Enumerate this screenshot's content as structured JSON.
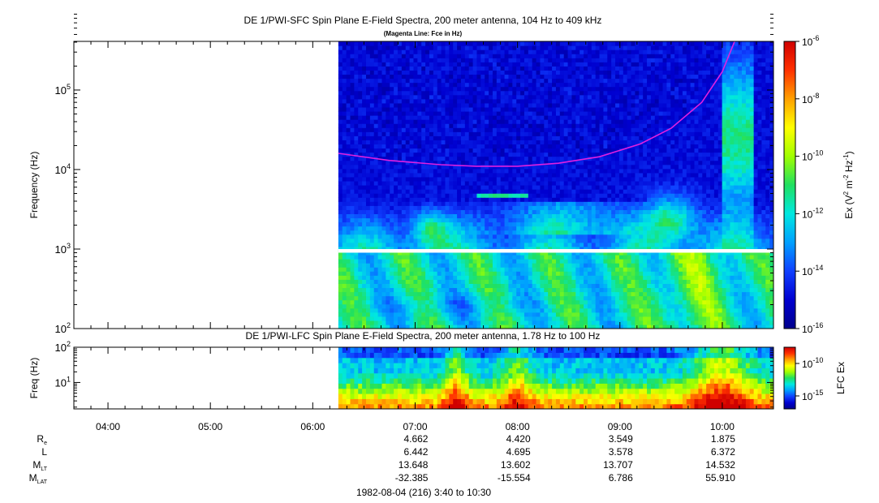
{
  "colors": {
    "fce_line": "#e020e0",
    "colorscale": [
      "#00008c",
      "#0000d0",
      "#1040ff",
      "#00a0ff",
      "#00e8e0",
      "#20e060",
      "#a0ff00",
      "#ffff00",
      "#ffa000",
      "#ff3000",
      "#d00000"
    ]
  },
  "chart_data": [
    {
      "type": "heatmap",
      "title": "DE 1/PWI-SFC  Spin Plane E-Field Spectra, 200 meter antenna, 104 Hz to 409 kHz",
      "subtitle": "(Magenta Line: Fce in Hz)",
      "ylabel": "Frequency (Hz)",
      "yscale": "log",
      "ylim": [
        100,
        409000
      ],
      "yticks": [
        {
          "value": 100,
          "base": "10",
          "exp": "2"
        },
        {
          "value": 1000,
          "base": "10",
          "exp": "3"
        },
        {
          "value": 10000,
          "base": "10",
          "exp": "4"
        },
        {
          "value": 100000,
          "base": "10",
          "exp": "5"
        }
      ],
      "xlim_hours": [
        3.6667,
        10.5
      ],
      "data_start_hours": 6.25,
      "data_gap_hz": [
        900,
        1000
      ],
      "colorbar": {
        "label_base": "Ex (V",
        "label_sup1": "2",
        "label_mid": " m",
        "label_sup2": "-2",
        "label_mid2": " Hz",
        "label_sup3": "-1",
        "label_end": ")",
        "scale": "log",
        "range": [
          1e-16,
          1e-06
        ],
        "ticks": [
          {
            "value": -6,
            "base": "10",
            "exp": "-6"
          },
          {
            "value": -8,
            "base": "10",
            "exp": "-8"
          },
          {
            "value": -10,
            "base": "10",
            "exp": "-10"
          },
          {
            "value": -12,
            "base": "10",
            "exp": "-12"
          },
          {
            "value": -14,
            "base": "10",
            "exp": "-14"
          },
          {
            "value": -16,
            "base": "10",
            "exp": "-16"
          }
        ]
      },
      "fce_line": {
        "x_hours": [
          6.25,
          6.75,
          7.25,
          7.6,
          8.0,
          8.4,
          8.8,
          9.2,
          9.5,
          9.8,
          10.0,
          10.12
        ],
        "y_hz": [
          16000,
          13000,
          11500,
          11000,
          11000,
          12000,
          14500,
          21000,
          33000,
          70000,
          170000,
          409000
        ]
      }
    },
    {
      "type": "heatmap",
      "title": "DE 1/PWI-LFC  Spin Plane E-Field Spectra, 200 meter antenna, 1.78 Hz to 100 Hz",
      "ylabel": "Freq (Hz)",
      "yscale": "log",
      "ylim": [
        1.78,
        100
      ],
      "yticks": [
        {
          "value": 10,
          "base": "10",
          "exp": "1"
        },
        {
          "value": 100,
          "base": "10",
          "exp": "2"
        }
      ],
      "xlim_hours": [
        3.6667,
        10.5
      ],
      "data_start_hours": 6.25,
      "colorbar": {
        "label": "LFC Ex",
        "scale": "log",
        "ticks": [
          {
            "value": -10,
            "base": "10",
            "exp": "-10"
          },
          {
            "value": -15,
            "base": "10",
            "exp": "-15"
          }
        ]
      }
    }
  ],
  "time_axis": {
    "ticks": [
      {
        "hours": 4,
        "label": "04:00"
      },
      {
        "hours": 5,
        "label": "05:00"
      },
      {
        "hours": 6,
        "label": "06:00"
      },
      {
        "hours": 7,
        "label": "07:00"
      },
      {
        "hours": 8,
        "label": "08:00"
      },
      {
        "hours": 9,
        "label": "09:00"
      },
      {
        "hours": 10,
        "label": "10:00"
      }
    ],
    "minor_step_minutes": 10
  },
  "ephemeris": {
    "rows": [
      {
        "label": "R",
        "sub": "e",
        "values": [
          "4.662",
          "4.420",
          "3.549",
          "1.875"
        ]
      },
      {
        "label": "L",
        "sub": "",
        "values": [
          "6.442",
          "4.695",
          "3.578",
          "6.372"
        ]
      },
      {
        "label": "M",
        "sub": "LT",
        "values": [
          "13.648",
          "13.602",
          "13.707",
          "14.532"
        ]
      },
      {
        "label": "M",
        "sub": "LAT",
        "values": [
          "-32.385",
          "-15.554",
          "6.786",
          "55.910"
        ]
      }
    ],
    "value_hours": [
      7,
      8,
      9,
      10
    ]
  },
  "footer": "1982-08-04 (216) 3:40 to 10:30"
}
